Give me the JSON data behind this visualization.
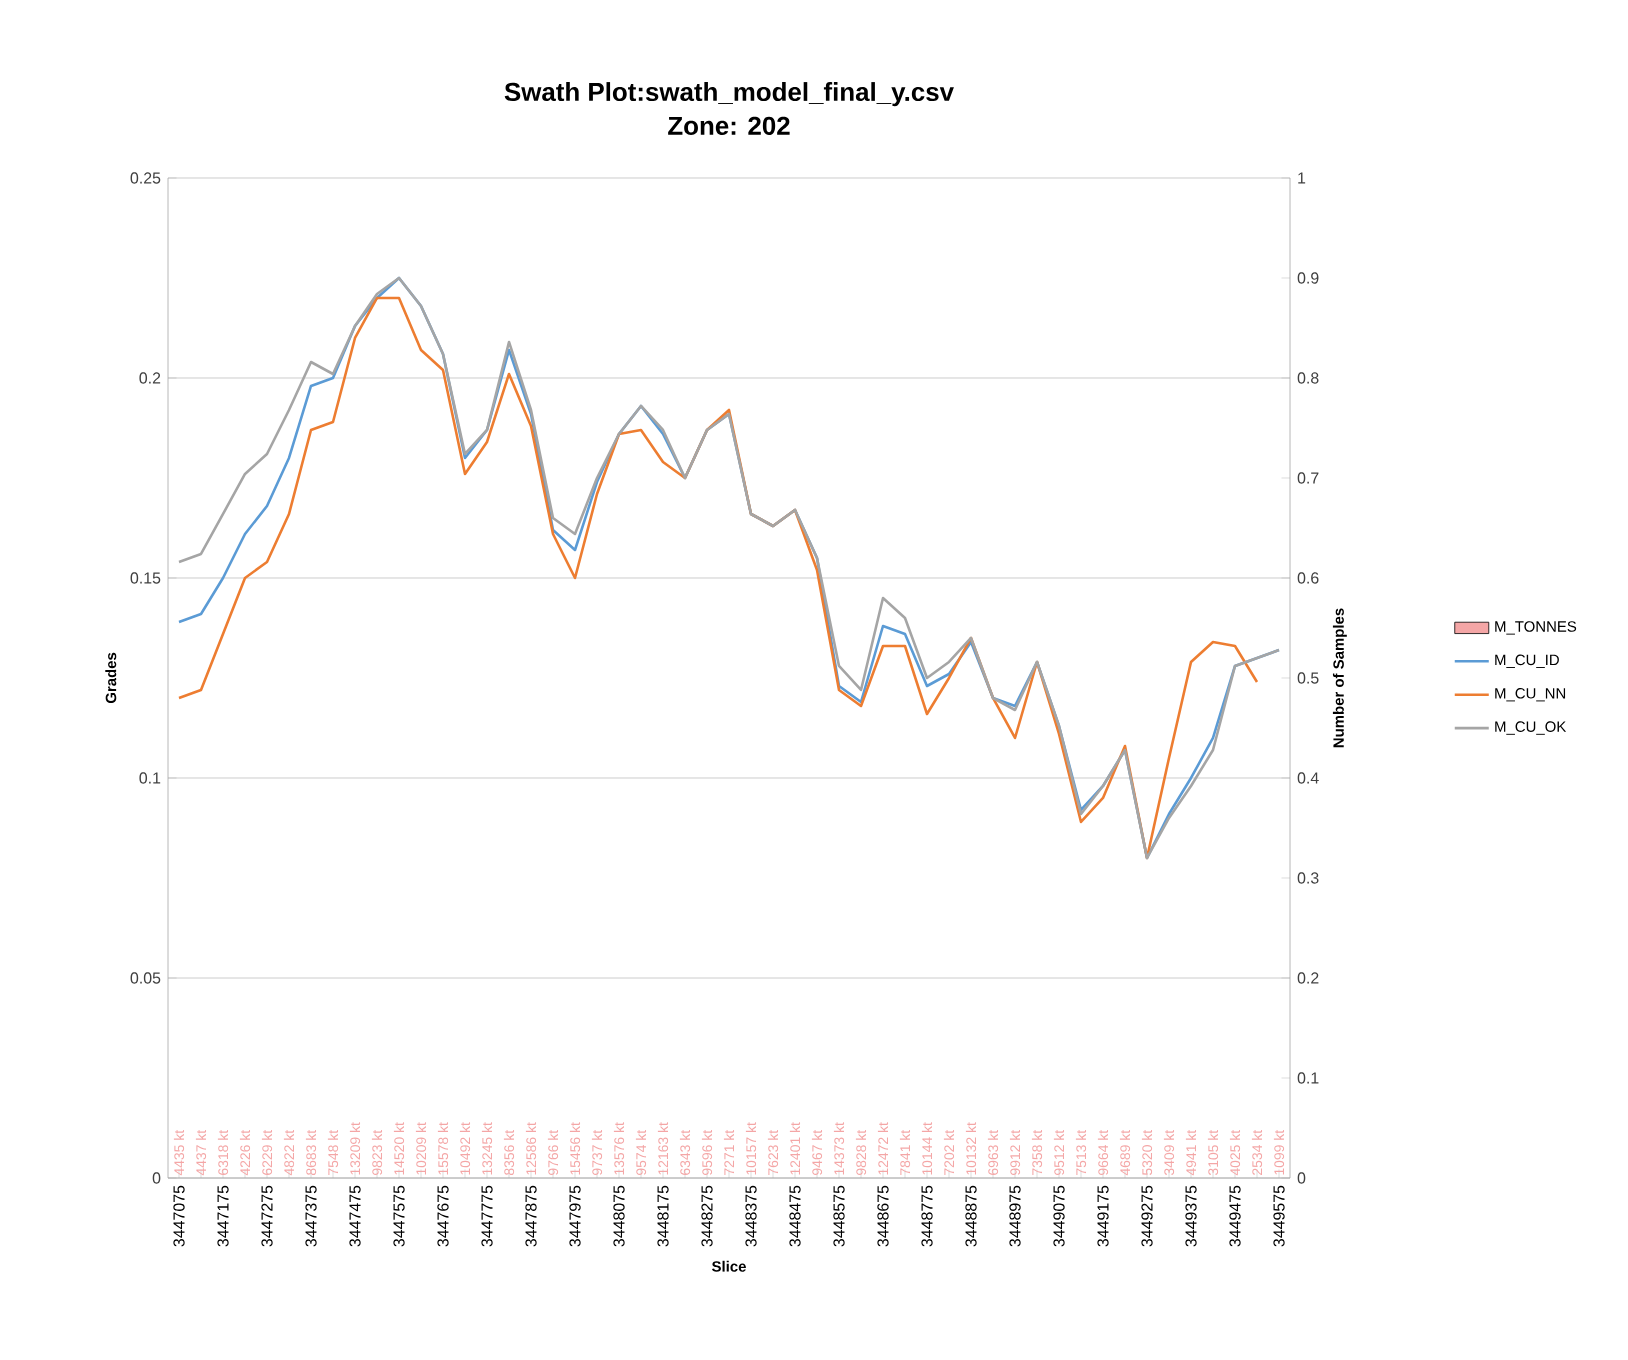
{
  "chart_data": {
    "type": "line",
    "title": "Swath Plot:swath_model_final_y.csv",
    "subtitle": "Zone: 202",
    "xlabel": "Slice",
    "ylabel": "Grades",
    "y2label": "Number of Samples",
    "categories": [
      "3447075",
      null,
      "3447175",
      null,
      "3447275",
      null,
      "3447375",
      null,
      "3447475",
      null,
      "3447575",
      null,
      "3447675",
      null,
      "3447775",
      null,
      "3447875",
      null,
      "3447975",
      null,
      "3448075",
      null,
      "3448175",
      null,
      "3448275",
      null,
      "3448375",
      null,
      "3448475",
      null,
      "3448575",
      null,
      "3448675",
      null,
      "3448775",
      null,
      "3448875",
      null,
      "3448975",
      null,
      "3449075",
      null,
      "3449175",
      null,
      "3449275",
      null,
      "3449375",
      null,
      "3449475",
      null,
      "3449575"
    ],
    "series": [
      {
        "name": "M_TONNES",
        "type": "bar",
        "color": "#f4a6a6",
        "values": [
          null,
          null,
          null,
          null,
          null,
          null,
          null,
          null,
          null,
          null,
          null,
          null,
          null,
          null,
          null,
          null,
          null,
          null,
          null,
          null,
          null,
          null,
          null,
          null,
          null,
          null,
          null,
          null,
          null,
          null,
          null,
          null,
          null,
          null,
          null,
          null,
          null,
          null,
          null,
          null,
          null,
          null,
          null,
          null,
          null,
          null,
          null,
          null,
          null,
          null,
          null
        ],
        "value_labels": [
          "4435 kt",
          "4437 kt",
          "6318 kt",
          "4226 kt",
          "6229 kt",
          "4822 kt",
          "8683 kt",
          "7548 kt",
          "13209 kt",
          "9823 kt",
          "14520 kt",
          "10209 kt",
          "15578 kt",
          "10492 kt",
          "13245 kt",
          "8356 kt",
          "12586 kt",
          "9766 kt",
          "15456 kt",
          "9737 kt",
          "13576 kt",
          "9574 kt",
          "12163 kt",
          "6343 kt",
          "9596 kt",
          "7271 kt",
          "10157 kt",
          "7623 kt",
          "12401 kt",
          "9467 kt",
          "14373 kt",
          "9828 kt",
          "12472 kt",
          "7841 kt",
          "10144 kt",
          "7202 kt",
          "10132 kt",
          "6963 kt",
          "9912 kt",
          "7358 kt",
          "9512 kt",
          "7513 kt",
          "9664 kt",
          "4689 kt",
          "5320 kt",
          "3409 kt",
          "4941 kt",
          "3105 kt",
          "4025 kt",
          "2534 kt",
          "1099 kt"
        ]
      },
      {
        "name": "M_CU_ID",
        "color": "#5b9bd5",
        "values": [
          0.139,
          0.141,
          0.15,
          0.161,
          0.168,
          0.18,
          0.198,
          0.2,
          0.213,
          0.22,
          0.225,
          0.218,
          0.206,
          0.18,
          0.187,
          0.207,
          0.191,
          0.162,
          0.157,
          0.174,
          0.186,
          0.193,
          0.186,
          0.175,
          0.187,
          0.191,
          0.166,
          0.163,
          0.167,
          0.155,
          0.123,
          0.119,
          0.138,
          0.136,
          0.123,
          0.126,
          0.134,
          0.12,
          0.118,
          0.129,
          0.113,
          0.092,
          0.098,
          0.107,
          0.08,
          0.091,
          0.1,
          0.11,
          0.128,
          0.13,
          0.132
        ]
      },
      {
        "name": "M_CU_NN",
        "color": "#ed7d31",
        "values": [
          0.12,
          0.122,
          0.136,
          0.15,
          0.154,
          0.166,
          0.187,
          0.189,
          0.21,
          0.22,
          0.22,
          0.207,
          0.202,
          0.176,
          0.184,
          0.201,
          0.188,
          0.161,
          0.15,
          0.171,
          0.186,
          0.187,
          0.179,
          0.175,
          0.187,
          0.192,
          0.166,
          0.163,
          0.167,
          0.152,
          0.122,
          0.118,
          0.133,
          0.133,
          0.116,
          0.125,
          0.135,
          0.12,
          0.11,
          0.129,
          0.111,
          0.089,
          0.095,
          0.108,
          0.08,
          0.105,
          0.129,
          0.134,
          0.133,
          0.124,
          null
        ]
      },
      {
        "name": "M_CU_OK",
        "color": "#a5a5a5",
        "values": [
          0.154,
          0.156,
          0.166,
          0.176,
          0.181,
          0.192,
          0.204,
          0.201,
          0.213,
          0.221,
          0.225,
          0.218,
          0.206,
          0.181,
          0.187,
          0.209,
          0.192,
          0.165,
          0.161,
          0.175,
          0.186,
          0.193,
          0.187,
          0.175,
          0.187,
          0.191,
          0.166,
          0.163,
          0.167,
          0.155,
          0.128,
          0.122,
          0.145,
          0.14,
          0.125,
          0.129,
          0.135,
          0.12,
          0.117,
          0.129,
          0.113,
          0.091,
          0.098,
          0.107,
          0.08,
          0.09,
          0.098,
          0.107,
          0.128,
          0.13,
          0.132
        ]
      }
    ],
    "ylim": [
      0,
      0.25
    ],
    "yticks": [
      0,
      0.05,
      0.1,
      0.15,
      0.2,
      0.25
    ],
    "y2lim": [
      0,
      1
    ],
    "y2ticks": [
      0,
      0.1,
      0.2,
      0.3,
      0.4,
      0.5,
      0.6,
      0.7,
      0.8,
      0.9,
      1
    ],
    "grid": "y",
    "legend": "right",
    "line_style": "solid",
    "marker": "none"
  }
}
